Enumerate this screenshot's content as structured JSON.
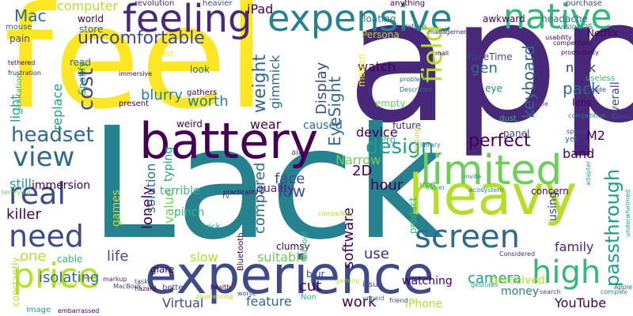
{
  "colors": {
    "c1": "#440154",
    "c2": "#482878",
    "c3": "#3e4a89",
    "c4": "#31688e",
    "c5": "#26828e",
    "c6": "#1f9e89",
    "c7": "#35b779",
    "c8": "#6ece58",
    "c9": "#b5de2b",
    "c10": "#fde725"
  },
  "words": [
    {
      "text": "app",
      "color": "c2"
    },
    {
      "text": "Lack",
      "color": "c5"
    },
    {
      "text": "feel",
      "color": "c10"
    },
    {
      "text": "experience",
      "color": "c3"
    },
    {
      "text": "battery",
      "color": "c1"
    },
    {
      "text": "feeling",
      "color": "c2"
    },
    {
      "text": "expensive",
      "color": "c5"
    },
    {
      "text": "heavy",
      "color": "c9"
    },
    {
      "text": "limited",
      "color": "c8"
    },
    {
      "text": "price",
      "color": "c9"
    },
    {
      "text": "native",
      "color": "c7"
    },
    {
      "text": "screen",
      "color": "c4"
    },
    {
      "text": "high",
      "color": "c7"
    },
    {
      "text": "real",
      "color": "c3"
    },
    {
      "text": "need",
      "color": "c3"
    },
    {
      "text": "view",
      "color": "c4"
    },
    {
      "text": "field",
      "color": "c9"
    },
    {
      "text": "design",
      "color": "c6"
    },
    {
      "text": "uncomfortable",
      "color": "c3"
    },
    {
      "text": "headset",
      "color": "c4"
    },
    {
      "text": "passthrough",
      "color": "c6"
    },
    {
      "text": "cost",
      "color": "c3"
    },
    {
      "text": "weight",
      "color": "c4"
    },
    {
      "text": "EyeSight",
      "color": "c4"
    },
    {
      "text": "perfect",
      "color": "c1"
    },
    {
      "text": "keyboard",
      "color": "c4"
    },
    {
      "text": "Display",
      "color": "c3"
    },
    {
      "text": "isolating",
      "color": "c4"
    },
    {
      "text": "killer",
      "color": "c1"
    },
    {
      "text": "software",
      "color": "c1"
    },
    {
      "text": "compared",
      "color": "c4"
    },
    {
      "text": "worth",
      "color": "c5"
    },
    {
      "text": "blurry",
      "color": "c5"
    },
    {
      "text": "gimmick",
      "color": "c4"
    },
    {
      "text": "hour",
      "color": "c1"
    },
    {
      "text": "lonely",
      "color": "c1"
    },
    {
      "text": "low",
      "color": "c3"
    },
    {
      "text": "face",
      "color": "c3"
    },
    {
      "text": "feature",
      "color": "c4"
    },
    {
      "text": "work",
      "color": "c1"
    },
    {
      "text": "camera",
      "color": "c6"
    },
    {
      "text": "YouTube",
      "color": "c1"
    },
    {
      "text": "suitable",
      "color": "c8"
    },
    {
      "text": "life",
      "color": "c3"
    },
    {
      "text": "Mac",
      "color": "c4"
    },
    {
      "text": "computer",
      "color": "c9"
    },
    {
      "text": "device",
      "color": "c1"
    },
    {
      "text": "solution",
      "color": "c4"
    },
    {
      "text": "watch",
      "color": "c1"
    },
    {
      "text": "band",
      "color": "c1"
    },
    {
      "text": "use",
      "color": "c2"
    },
    {
      "text": "slow",
      "color": "c9"
    },
    {
      "text": "iPhone",
      "color": "c9"
    },
    {
      "text": "family",
      "color": "c2"
    },
    {
      "text": "Virtual",
      "color": "c3"
    },
    {
      "text": "one",
      "color": "c9"
    },
    {
      "text": "pack",
      "color": "c4"
    },
    {
      "text": "neck",
      "color": "c2"
    },
    {
      "text": "light",
      "color": "c6"
    },
    {
      "text": "replace",
      "color": "c6"
    },
    {
      "text": "value",
      "color": "c8"
    },
    {
      "text": "typing",
      "color": "c6"
    },
    {
      "text": "iPad",
      "color": "c1"
    },
    {
      "text": "wear",
      "color": "c1"
    },
    {
      "text": "Narrow",
      "color": "c8"
    },
    {
      "text": "2D",
      "color": "c1"
    },
    {
      "text": "cut",
      "color": "c1"
    },
    {
      "text": "still",
      "color": "c6"
    },
    {
      "text": "games",
      "color": "c9"
    },
    {
      "text": "terrible",
      "color": "c7"
    },
    {
      "text": "overall",
      "color": "c3"
    },
    {
      "text": "gen",
      "color": "c4"
    },
    {
      "text": "caused",
      "color": "c4"
    },
    {
      "text": "using",
      "color": "c3"
    },
    {
      "text": "M2",
      "color": "c1"
    },
    {
      "text": "quality",
      "color": "c2"
    },
    {
      "text": "clumsy",
      "color": "c1"
    },
    {
      "text": "constantly",
      "color": "c9"
    },
    {
      "text": "pinch",
      "color": "c7"
    },
    {
      "text": "perceived",
      "color": "c9"
    },
    {
      "text": "watching",
      "color": "c1"
    },
    {
      "text": "money",
      "color": "c5"
    },
    {
      "text": "glare",
      "color": "c1"
    },
    {
      "text": "Netflix",
      "color": "c1"
    },
    {
      "text": "FaceTime",
      "color": "c3"
    },
    {
      "text": "blur",
      "color": "c3"
    },
    {
      "text": "immersion",
      "color": "c1"
    },
    {
      "text": "world",
      "color": "c1"
    },
    {
      "text": "store",
      "color": "c4"
    },
    {
      "text": "Spotify",
      "color": "c6"
    },
    {
      "text": "mouse",
      "color": "c4"
    },
    {
      "text": "pain",
      "color": "c3"
    },
    {
      "text": "eye",
      "color": "c5"
    },
    {
      "text": "lens",
      "color": "c1"
    },
    {
      "text": "future",
      "color": "c2"
    },
    {
      "text": "Persona",
      "color": "c9"
    },
    {
      "text": "look",
      "color": "c4"
    },
    {
      "text": "headache",
      "color": "c4"
    },
    {
      "text": "floating",
      "color": "c5"
    },
    {
      "text": "anything",
      "color": "c1"
    },
    {
      "text": "awkward",
      "color": "c1"
    },
    {
      "text": "purchase",
      "color": "c3"
    },
    {
      "text": "revolution",
      "color": "c2"
    },
    {
      "text": "heavier",
      "color": "c3"
    },
    {
      "text": "concern",
      "color": "c1"
    },
    {
      "text": "Pro",
      "color": "c7"
    },
    {
      "text": "panel",
      "color": "c3"
    },
    {
      "text": "empty",
      "color": "c8"
    },
    {
      "text": "motion",
      "color": "c10"
    },
    {
      "text": "read",
      "color": "c4"
    },
    {
      "text": "first",
      "color": "c10"
    },
    {
      "text": "weird",
      "color": "c1"
    },
    {
      "text": "present",
      "color": "c1"
    },
    {
      "text": "gathers",
      "color": "c1"
    },
    {
      "text": "cable",
      "color": "c7"
    },
    {
      "text": "brick",
      "color": "c6"
    },
    {
      "text": "air",
      "color": "c3"
    },
    {
      "text": "Bluetooth",
      "color": "c1"
    },
    {
      "text": "without",
      "color": "c7"
    },
    {
      "text": "Non",
      "color": "c7"
    },
    {
      "text": "issue",
      "color": "c3"
    },
    {
      "text": "better",
      "color": "c3"
    },
    {
      "text": "image",
      "color": "c6"
    },
    {
      "text": "embarrassed",
      "color": "c1"
    },
    {
      "text": "yet",
      "color": "c4"
    },
    {
      "text": "dust",
      "color": "c7"
    },
    {
      "text": "product",
      "color": "c7"
    },
    {
      "text": "useless",
      "color": "c7"
    },
    {
      "text": "visionOS",
      "color": "c5"
    },
    {
      "text": "limitation",
      "color": "c7"
    },
    {
      "text": "limiting",
      "color": "c9"
    },
    {
      "text": "immersive",
      "color": "c1"
    },
    {
      "text": "TV",
      "color": "c3"
    },
    {
      "text": "tethered",
      "color": "c1"
    },
    {
      "text": "frustration",
      "color": "c2"
    },
    {
      "text": "MacBook",
      "color": "c3"
    },
    {
      "text": "hazard",
      "color": "c1"
    },
    {
      "text": "friend",
      "color": "c3"
    },
    {
      "text": "Considered",
      "color": "c2"
    },
    {
      "text": "Apple",
      "color": "c4"
    },
    {
      "text": "search",
      "color": "c3"
    },
    {
      "text": "complex",
      "color": "c5"
    },
    {
      "text": "gestures",
      "color": "c6"
    },
    {
      "text": "ecosystem",
      "color": "c5"
    },
    {
      "text": "compelling",
      "color": "c9"
    },
    {
      "text": "library",
      "color": "c5"
    },
    {
      "text": "tactile",
      "color": "c3"
    },
    {
      "text": "spatial",
      "color": "c3"
    },
    {
      "text": "cheeks",
      "color": "c3"
    },
    {
      "text": "invite",
      "color": "c5"
    },
    {
      "text": "underwhelmed",
      "color": "c6"
    },
    {
      "text": "competitors",
      "color": "c1"
    },
    {
      "text": "productivity",
      "color": "c1"
    },
    {
      "text": "competition",
      "color": "c5"
    },
    {
      "text": "Described",
      "color": "c4"
    },
    {
      "text": "problem",
      "color": "c4"
    },
    {
      "text": "Arcade",
      "color": "c3"
    },
    {
      "text": "defeats",
      "color": "c4"
    },
    {
      "text": "usability",
      "color": "c1"
    },
    {
      "text": "adapter",
      "color": "c6"
    },
    {
      "text": "health",
      "color": "c1"
    },
    {
      "text": "disorienting",
      "color": "c9"
    },
    {
      "text": "worse",
      "color": "c3"
    },
    {
      "text": "practicality",
      "color": "c1"
    },
    {
      "text": "terrifying",
      "color": "c8"
    },
    {
      "text": "Pressure",
      "color": "c9"
    },
    {
      "text": "easier",
      "color": "c6"
    },
    {
      "text": "unpaid",
      "color": "c5"
    },
    {
      "text": "gaming",
      "color": "c9"
    },
    {
      "text": "markup",
      "color": "c2"
    },
    {
      "text": "tasks",
      "color": "c3"
    },
    {
      "text": "short",
      "color": "c6"
    },
    {
      "text": "mall",
      "color": "c1"
    },
    {
      "text": "management",
      "color": "c2"
    }
  ]
}
